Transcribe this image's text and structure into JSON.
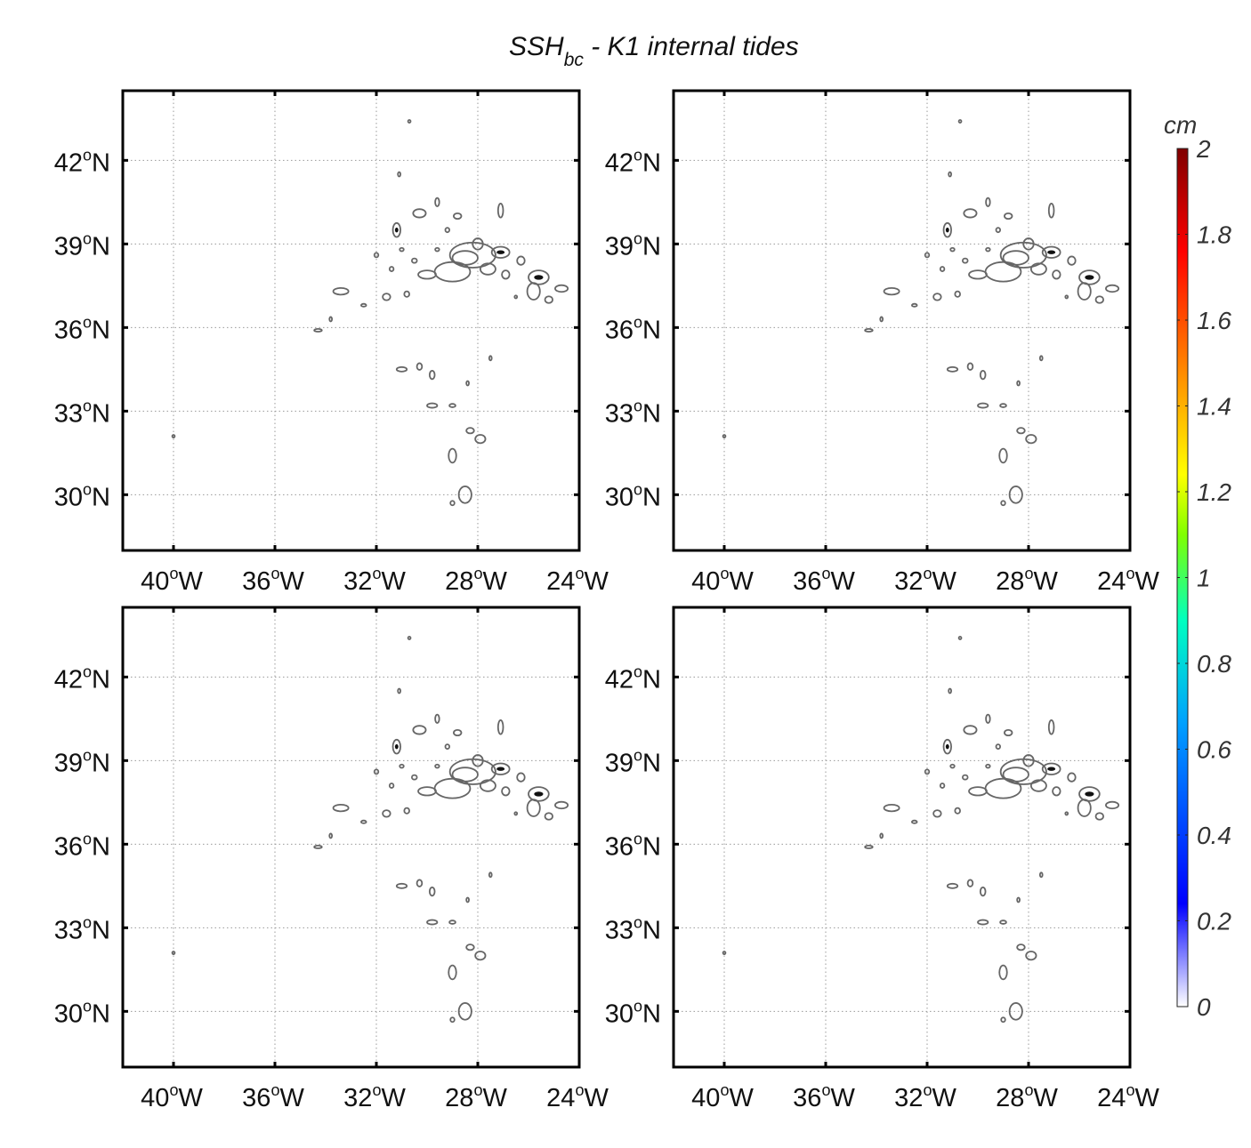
{
  "title": {
    "main": "SSH",
    "sub": "bc",
    "rest": " - K1 internal tides"
  },
  "chart_data": {
    "type": "contour-map",
    "panel_count": 4,
    "xlim": [
      -42,
      -24
    ],
    "ylim": [
      28,
      44.5
    ],
    "x_ticks": [
      {
        "value": -40,
        "num": "40",
        "deg": "o",
        "hem": "W"
      },
      {
        "value": -36,
        "num": "36",
        "deg": "o",
        "hem": "W"
      },
      {
        "value": -32,
        "num": "32",
        "deg": "o",
        "hem": "W"
      },
      {
        "value": -28,
        "num": "28",
        "deg": "o",
        "hem": "W"
      },
      {
        "value": -24,
        "num": "24",
        "deg": "o",
        "hem": "W"
      }
    ],
    "y_ticks": [
      {
        "value": 42,
        "num": "42",
        "deg": "o",
        "hem": "N"
      },
      {
        "value": 39,
        "num": "39",
        "deg": "o",
        "hem": "N"
      },
      {
        "value": 36,
        "num": "36",
        "deg": "o",
        "hem": "N"
      },
      {
        "value": 33,
        "num": "33",
        "deg": "o",
        "hem": "N"
      },
      {
        "value": 30,
        "num": "30",
        "deg": "o",
        "hem": "N"
      }
    ],
    "grid": true,
    "contour_color": "#666666",
    "contour_peak_color": "#111111",
    "features": [
      {
        "lon": -30.7,
        "lat": 43.4,
        "rx": 0.05,
        "ry": 0.05,
        "peak": false
      },
      {
        "lon": -31.1,
        "lat": 41.5,
        "rx": 0.05,
        "ry": 0.08,
        "peak": false
      },
      {
        "lon": -30.3,
        "lat": 40.1,
        "rx": 0.25,
        "ry": 0.15,
        "peak": false
      },
      {
        "lon": -29.6,
        "lat": 40.5,
        "rx": 0.08,
        "ry": 0.15,
        "peak": false
      },
      {
        "lon": -31.2,
        "lat": 39.5,
        "rx": 0.15,
        "ry": 0.25,
        "peak": true
      },
      {
        "lon": -28.8,
        "lat": 40.0,
        "rx": 0.15,
        "ry": 0.1,
        "peak": false
      },
      {
        "lon": -27.1,
        "lat": 40.2,
        "rx": 0.1,
        "ry": 0.25,
        "peak": false
      },
      {
        "lon": -29.2,
        "lat": 39.5,
        "rx": 0.08,
        "ry": 0.08,
        "peak": false
      },
      {
        "lon": -28.2,
        "lat": 38.6,
        "rx": 0.9,
        "ry": 0.45,
        "peak": false
      },
      {
        "lon": -28.5,
        "lat": 38.5,
        "rx": 0.5,
        "ry": 0.25,
        "peak": false
      },
      {
        "lon": -28.0,
        "lat": 39.0,
        "rx": 0.2,
        "ry": 0.2,
        "peak": false
      },
      {
        "lon": -27.1,
        "lat": 38.7,
        "rx": 0.35,
        "ry": 0.2,
        "peak": true
      },
      {
        "lon": -29.0,
        "lat": 38.0,
        "rx": 0.7,
        "ry": 0.35,
        "peak": false
      },
      {
        "lon": -30.0,
        "lat": 37.9,
        "rx": 0.35,
        "ry": 0.15,
        "peak": false
      },
      {
        "lon": -27.6,
        "lat": 38.1,
        "rx": 0.3,
        "ry": 0.2,
        "peak": false
      },
      {
        "lon": -26.9,
        "lat": 37.9,
        "rx": 0.15,
        "ry": 0.15,
        "peak": false
      },
      {
        "lon": -26.3,
        "lat": 38.4,
        "rx": 0.15,
        "ry": 0.15,
        "peak": false
      },
      {
        "lon": -25.6,
        "lat": 37.8,
        "rx": 0.4,
        "ry": 0.25,
        "peak": true
      },
      {
        "lon": -25.8,
        "lat": 37.3,
        "rx": 0.25,
        "ry": 0.3,
        "peak": false
      },
      {
        "lon": -25.2,
        "lat": 37.0,
        "rx": 0.15,
        "ry": 0.12,
        "peak": false
      },
      {
        "lon": -24.7,
        "lat": 37.4,
        "rx": 0.25,
        "ry": 0.12,
        "peak": false
      },
      {
        "lon": -33.4,
        "lat": 37.3,
        "rx": 0.3,
        "ry": 0.12,
        "peak": false
      },
      {
        "lon": -32.5,
        "lat": 36.8,
        "rx": 0.1,
        "ry": 0.05,
        "peak": false
      },
      {
        "lon": -31.6,
        "lat": 37.1,
        "rx": 0.15,
        "ry": 0.12,
        "peak": false
      },
      {
        "lon": -30.8,
        "lat": 37.2,
        "rx": 0.1,
        "ry": 0.1,
        "peak": false
      },
      {
        "lon": -31.4,
        "lat": 38.1,
        "rx": 0.08,
        "ry": 0.08,
        "peak": false
      },
      {
        "lon": -30.5,
        "lat": 38.4,
        "rx": 0.1,
        "ry": 0.08,
        "peak": false
      },
      {
        "lon": -32.0,
        "lat": 38.6,
        "rx": 0.08,
        "ry": 0.08,
        "peak": false
      },
      {
        "lon": -31.0,
        "lat": 38.8,
        "rx": 0.08,
        "ry": 0.06,
        "peak": false
      },
      {
        "lon": -29.6,
        "lat": 38.8,
        "rx": 0.08,
        "ry": 0.06,
        "peak": false
      },
      {
        "lon": -26.5,
        "lat": 37.1,
        "rx": 0.05,
        "ry": 0.05,
        "peak": false
      },
      {
        "lon": -33.8,
        "lat": 36.3,
        "rx": 0.05,
        "ry": 0.08,
        "peak": false
      },
      {
        "lon": -34.3,
        "lat": 35.9,
        "rx": 0.15,
        "ry": 0.05,
        "peak": false
      },
      {
        "lon": -31.0,
        "lat": 34.5,
        "rx": 0.2,
        "ry": 0.08,
        "peak": false
      },
      {
        "lon": -30.3,
        "lat": 34.6,
        "rx": 0.1,
        "ry": 0.12,
        "peak": false
      },
      {
        "lon": -29.8,
        "lat": 34.3,
        "rx": 0.1,
        "ry": 0.15,
        "peak": false
      },
      {
        "lon": -29.8,
        "lat": 33.2,
        "rx": 0.2,
        "ry": 0.08,
        "peak": false
      },
      {
        "lon": -29.0,
        "lat": 33.2,
        "rx": 0.12,
        "ry": 0.06,
        "peak": false
      },
      {
        "lon": -28.4,
        "lat": 34.0,
        "rx": 0.05,
        "ry": 0.08,
        "peak": false
      },
      {
        "lon": -27.5,
        "lat": 34.9,
        "rx": 0.05,
        "ry": 0.08,
        "peak": false
      },
      {
        "lon": -28.3,
        "lat": 32.3,
        "rx": 0.15,
        "ry": 0.1,
        "peak": false
      },
      {
        "lon": -27.9,
        "lat": 32.0,
        "rx": 0.2,
        "ry": 0.15,
        "peak": false
      },
      {
        "lon": -29.0,
        "lat": 31.4,
        "rx": 0.15,
        "ry": 0.25,
        "peak": false
      },
      {
        "lon": -28.5,
        "lat": 30.0,
        "rx": 0.25,
        "ry": 0.3,
        "peak": false
      },
      {
        "lon": -29.0,
        "lat": 29.7,
        "rx": 0.08,
        "ry": 0.08,
        "peak": false
      },
      {
        "lon": -40.0,
        "lat": 32.1,
        "rx": 0.05,
        "ry": 0.05,
        "peak": false
      }
    ],
    "colorbar": {
      "unit": "cm",
      "range": [
        0,
        2
      ],
      "tick_labels": [
        "0",
        "0.2",
        "0.4",
        "0.6",
        "0.8",
        "1",
        "1.2",
        "1.4",
        "1.6",
        "1.8",
        "2"
      ],
      "colormap": "jet",
      "colors": [
        "#ffffff",
        "#0000ff",
        "#00ffff",
        "#ffff00",
        "#ff0000",
        "#800000"
      ]
    }
  }
}
